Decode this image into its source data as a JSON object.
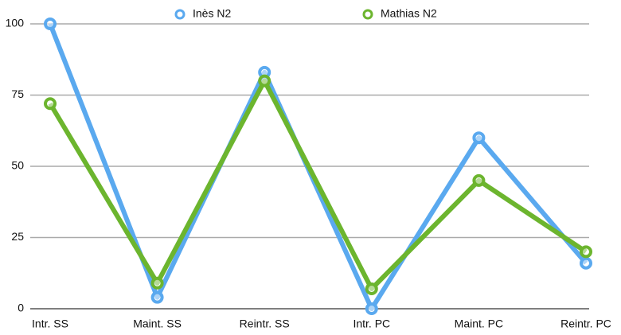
{
  "chart_data": {
    "type": "line",
    "categories": [
      "Intr. SS",
      "Maint. SS",
      "Reintr. SS",
      "Intr. PC",
      "Maint. PC",
      "Reintr. PC"
    ],
    "series": [
      {
        "name": "Inès N2",
        "color": "#5aa9ef",
        "values": [
          100,
          4,
          83,
          0,
          60,
          16
        ]
      },
      {
        "name": "Mathias N2",
        "color": "#6cb52e",
        "values": [
          72,
          9,
          80,
          7,
          45,
          20
        ]
      }
    ],
    "ylim": [
      0,
      100
    ],
    "yticks": [
      0,
      25,
      50,
      75,
      100
    ],
    "grid": true,
    "legend": "top"
  }
}
